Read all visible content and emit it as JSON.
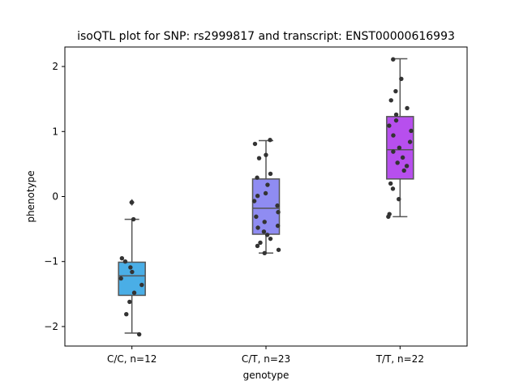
{
  "chart_data": {
    "type": "box",
    "title": "isoQTL plot for SNP: rs2999817 and transcript: ENST00000616993",
    "xlabel": "genotype",
    "ylabel": "phenotype",
    "ylim": [
      -2.3,
      2.3
    ],
    "yticks": [
      -2,
      -1,
      0,
      1,
      2
    ],
    "yticklabels": [
      "−2",
      "−1",
      "0",
      "1",
      "2"
    ],
    "grid": false,
    "categories": [
      "C/C, n=12",
      "C/T, n=23",
      "T/T, n=22"
    ],
    "colors": [
      "#4aaee6",
      "#8f8cf2",
      "#b74fee"
    ],
    "boxes": [
      {
        "q1": -1.52,
        "median": -1.22,
        "q3": -1.01,
        "whisker_low": -2.1,
        "whisker_high": -0.35,
        "outliers": [
          -0.09
        ]
      },
      {
        "q1": -0.58,
        "median": -0.18,
        "q3": 0.27,
        "whisker_low": -0.87,
        "whisker_high": 0.86,
        "outliers": []
      },
      {
        "q1": 0.27,
        "median": 0.72,
        "q3": 1.23,
        "whisker_low": -0.31,
        "whisker_high": 2.12,
        "outliers": []
      }
    ],
    "points": [
      [
        -0.09,
        -0.35,
        -0.95,
        -1.0,
        -1.09,
        -1.16,
        -1.26,
        -1.36,
        -1.48,
        -1.62,
        -1.81,
        -2.12
      ],
      [
        0.87,
        0.81,
        0.64,
        0.59,
        0.35,
        0.29,
        0.18,
        0.05,
        0.01,
        -0.07,
        -0.14,
        -0.24,
        -0.31,
        -0.39,
        -0.45,
        -0.48,
        -0.54,
        -0.59,
        -0.65,
        -0.71,
        -0.76,
        -0.82,
        -0.87
      ],
      [
        2.11,
        1.81,
        1.62,
        1.48,
        1.36,
        1.26,
        1.17,
        1.09,
        1.01,
        0.94,
        0.84,
        0.75,
        0.69,
        0.6,
        0.52,
        0.47,
        0.4,
        0.2,
        0.12,
        -0.04,
        -0.27,
        -0.31
      ]
    ]
  }
}
